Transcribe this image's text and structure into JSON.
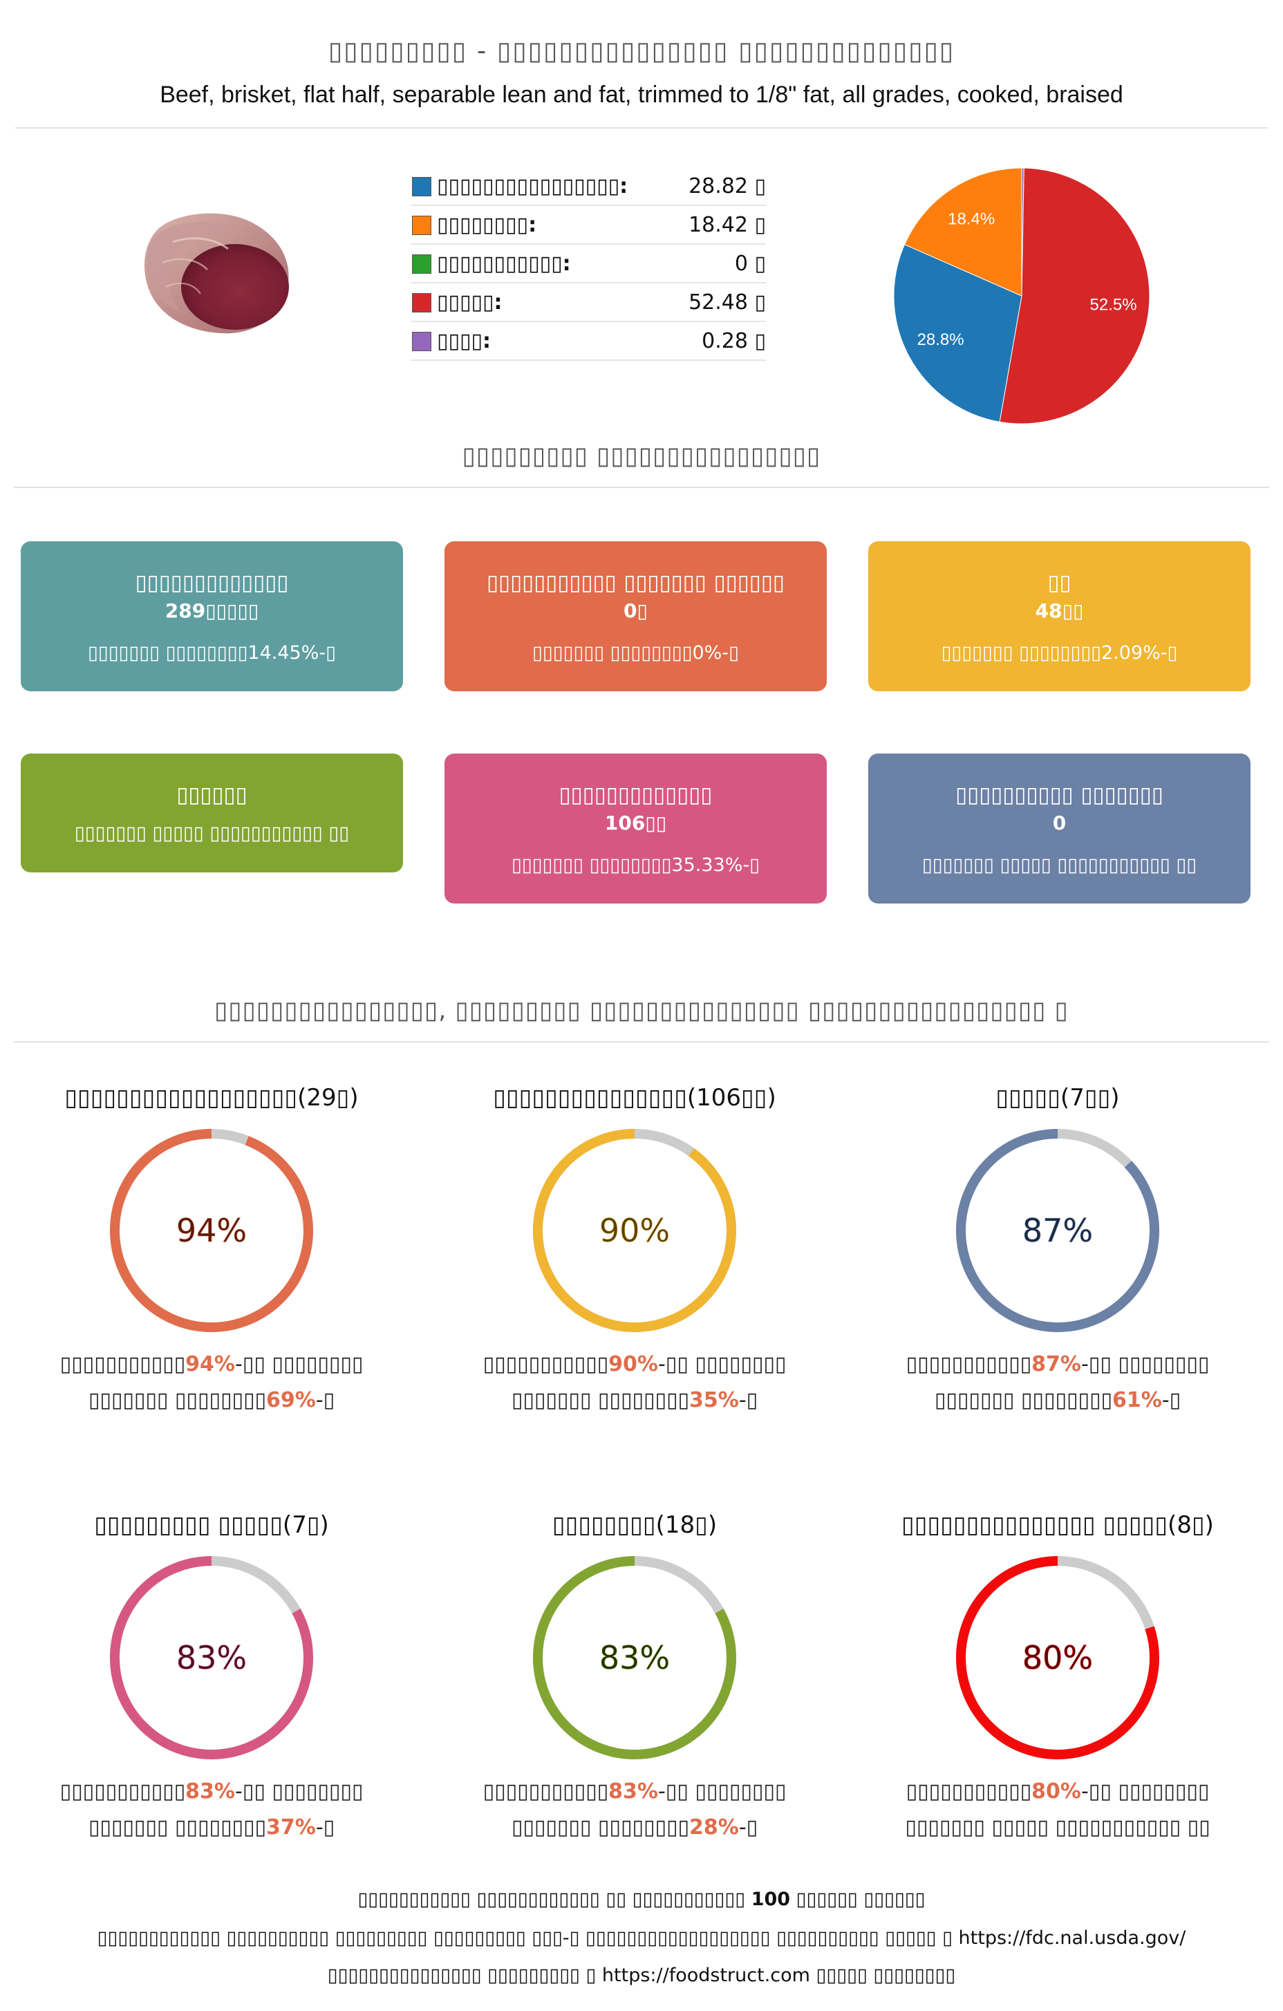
{
  "header": {
    "title": "▯▯▯▯▯▯▯▯▯ - ▯▯▯▯▯▯▯▯▯▯▯▯▯▯▯ ▯▯▯▯▯▯▯▯▯▯▯▯▯▯",
    "subtitle": "Beef, brisket, flat half, separable lean and fat, trimmed to 1/8\" fat, all grades, cooked, braised"
  },
  "legend": [
    {
      "label": "▯▯▯▯▯▯▯▯▯▯▯▯▯▯▯▯:",
      "value": "28.82 ▯",
      "color": "#1f77b4"
    },
    {
      "label": "▯▯▯▯▯▯▯▯:",
      "value": "18.42 ▯",
      "color": "#ff7f0e"
    },
    {
      "label": "▯▯▯▯▯▯▯▯▯▯▯:",
      "value": "0 ▯",
      "color": "#2ca02c"
    },
    {
      "label": "▯▯▯▯▯:",
      "value": "52.48 ▯",
      "color": "#d62728"
    },
    {
      "label": "▯▯▯▯:",
      "value": "0.28 ▯",
      "color": "#9467bd"
    }
  ],
  "chart_data": {
    "type": "pie",
    "categories": [
      "▯▯▯▯▯▯▯▯▯▯▯▯▯▯▯▯",
      "▯▯▯▯▯▯▯▯",
      "▯▯▯▯▯▯▯▯▯▯▯",
      "▯▯▯▯▯",
      "▯▯▯▯"
    ],
    "values": [
      28.82,
      18.42,
      0,
      52.48,
      0.28
    ],
    "colors": [
      "#1f77b4",
      "#ff7f0e",
      "#2ca02c",
      "#d62728",
      "#9467bd"
    ],
    "labels": [
      "28.8%",
      "18.4%",
      "",
      "52.5%",
      ""
    ]
  },
  "section_nutrition": "▯▯▯▯▯▯▯▯▯ ▯▯▯▯▯▯▯▯▯▯▯▯▯▯▯▯",
  "boxes": [
    {
      "title": "▯▯▯▯▯▯▯▯▯▯▯▯▯",
      "value": "289▯▯▯▯▯",
      "sub": "▯▯▯▯▯▯▯ ▯▯▯▯▯▯▯▯14.45%-▯",
      "color": "#5f9ea0"
    },
    {
      "title": "▯▯▯▯▯▯▯▯▯▯▯ ▯▯▯▯▯▯▯ ▯▯▯▯▯▯",
      "value": "0▯",
      "sub": "▯▯▯▯▯▯▯ ▯▯▯▯▯▯▯▯0%-▯",
      "color": "#e06c4b"
    },
    {
      "title": "▯▯",
      "value": "48▯▯",
      "sub": "▯▯▯▯▯▯▯ ▯▯▯▯▯▯▯▯2.09%-▯",
      "color": "#f0b531"
    },
    {
      "title": "▯▯▯▯▯▯",
      "value": "",
      "sub": "▯▯▯▯▯▯▯ ▯▯▯▯▯ ▯▯▯▯▯▯▯▯▯▯▯ ▯▯",
      "color": "#82a532"
    },
    {
      "title": "▯▯▯▯▯▯▯▯▯▯▯▯▯",
      "value": "106▯▯",
      "sub": "▯▯▯▯▯▯▯ ▯▯▯▯▯▯▯▯35.33%-▯",
      "color": "#d65882"
    },
    {
      "title": "▯▯▯▯▯▯▯▯▯▯ ▯▯▯▯▯▯▯",
      "value": "0",
      "sub": "▯▯▯▯▯▯▯ ▯▯▯▯▯ ▯▯▯▯▯▯▯▯▯▯▯ ▯▯",
      "color": "#6b81a6"
    }
  ],
  "section_rank": "▯▯▯▯▯▯▯▯▯▯▯▯▯▯▯▯, ▯▯▯▯▯▯▯▯▯ ▯▯▯▯▯▯▯▯▯▯▯▯▯▯▯ ▯▯▯▯▯▯▯▯▯▯▯▯▯▯▯▯▯ ▯",
  "rings": [
    {
      "title": "▯▯▯▯▯▯▯▯▯▯▯▯▯▯▯▯▯▯(29▯)",
      "percent": "94%",
      "fraction": 0.94,
      "color": "#e06c4b",
      "text_color": "#5a1a0a",
      "line1_pre": "▯▯▯▯▯▯▯▯▯▯▯",
      "line1_hl": "94%",
      "line1_post": "-▯▯ ▯▯▯▯▯▯▯▯",
      "line2_pre": "▯▯▯▯▯▯▯ ▯▯▯▯▯▯▯▯",
      "line2_hl": "69%",
      "line2_post": "-▯"
    },
    {
      "title": "▯▯▯▯▯▯▯▯▯▯▯▯▯▯▯(106▯▯)",
      "percent": "90%",
      "fraction": 0.9,
      "color": "#f0b531",
      "text_color": "#5a4200",
      "line1_pre": "▯▯▯▯▯▯▯▯▯▯▯",
      "line1_hl": "90%",
      "line1_post": "-▯▯ ▯▯▯▯▯▯▯▯",
      "line2_pre": "▯▯▯▯▯▯▯ ▯▯▯▯▯▯▯▯",
      "line2_hl": "35%",
      "line2_post": "-▯"
    },
    {
      "title": "▯▯▯▯▯(7▯▯)",
      "percent": "87%",
      "fraction": 0.87,
      "color": "#6b81a6",
      "text_color": "#1c2a44",
      "line1_pre": "▯▯▯▯▯▯▯▯▯▯▯",
      "line1_hl": "87%",
      "line1_post": "-▯▯ ▯▯▯▯▯▯▯▯",
      "line2_pre": "▯▯▯▯▯▯▯ ▯▯▯▯▯▯▯▯",
      "line2_hl": "61%",
      "line2_post": "-▯"
    },
    {
      "title": "▯▯▯▯▯▯▯▯▯ ▯▯▯▯▯(7▯)",
      "percent": "83%",
      "fraction": 0.83,
      "color": "#d65882",
      "text_color": "#4a0f25",
      "line1_pre": "▯▯▯▯▯▯▯▯▯▯▯",
      "line1_hl": "83%",
      "line1_post": "-▯▯ ▯▯▯▯▯▯▯▯",
      "line2_pre": "▯▯▯▯▯▯▯ ▯▯▯▯▯▯▯▯",
      "line2_hl": "37%",
      "line2_post": "-▯"
    },
    {
      "title": "▯▯▯▯▯▯▯▯(18▯)",
      "percent": "83%",
      "fraction": 0.83,
      "color": "#82a532",
      "text_color": "#233000",
      "line1_pre": "▯▯▯▯▯▯▯▯▯▯▯",
      "line1_hl": "83%",
      "line1_post": "-▯▯ ▯▯▯▯▯▯▯▯",
      "line2_pre": "▯▯▯▯▯▯▯ ▯▯▯▯▯▯▯▯",
      "line2_hl": "28%",
      "line2_post": "-▯"
    },
    {
      "title": "▯▯▯▯▯▯▯▯▯▯▯▯▯▯▯ ▯▯▯▯▯(8▯)",
      "percent": "80%",
      "fraction": 0.8,
      "color": "#f20a0a",
      "text_color": "#5a0000",
      "line1_pre": "▯▯▯▯▯▯▯▯▯▯▯",
      "line1_hl": "80%",
      "line1_post": "-▯▯ ▯▯▯▯▯▯▯▯",
      "line2_pre": "▯▯▯▯▯▯▯ ▯▯▯▯▯ ▯▯▯▯▯▯▯▯▯▯▯ ▯▯",
      "line2_hl": "",
      "line2_post": ""
    }
  ],
  "footer": {
    "line1_pre": "▯▯▯▯▯▯▯▯▯▯▯ ▯▯▯▯▯▯▯▯▯▯▯▯ ▯▯ ▯▯▯▯▯▯▯▯▯▯▯",
    "line1_bold": "100",
    "line1_post": " ▯▯▯▯▯▯ ▯▯▯▯▯▯",
    "line2": "▯▯▯▯▯▯▯▯▯▯▯▯ ▯▯▯▯▯▯▯▯▯▯ ▯▯▯▯▯▯▯▯▯ ▯▯▯▯▯▯▯▯▯ ▯▯▯-▯ ▯▯▯▯▯▯▯▯▯▯▯▯▯▯▯▯▯▯ ▯▯▯▯▯▯▯▯▯▯ ▯▯▯▯▯ ▯ https://fdc.nal.usda.gov/",
    "line3": "▯▯▯▯▯▯▯▯▯▯▯▯▯▯▯ ▯▯▯▯▯▯▯▯▯ ▯ https://foodstruct.com ▯▯▯▯▯ ▯▯▯▯▯▯▯▯"
  }
}
